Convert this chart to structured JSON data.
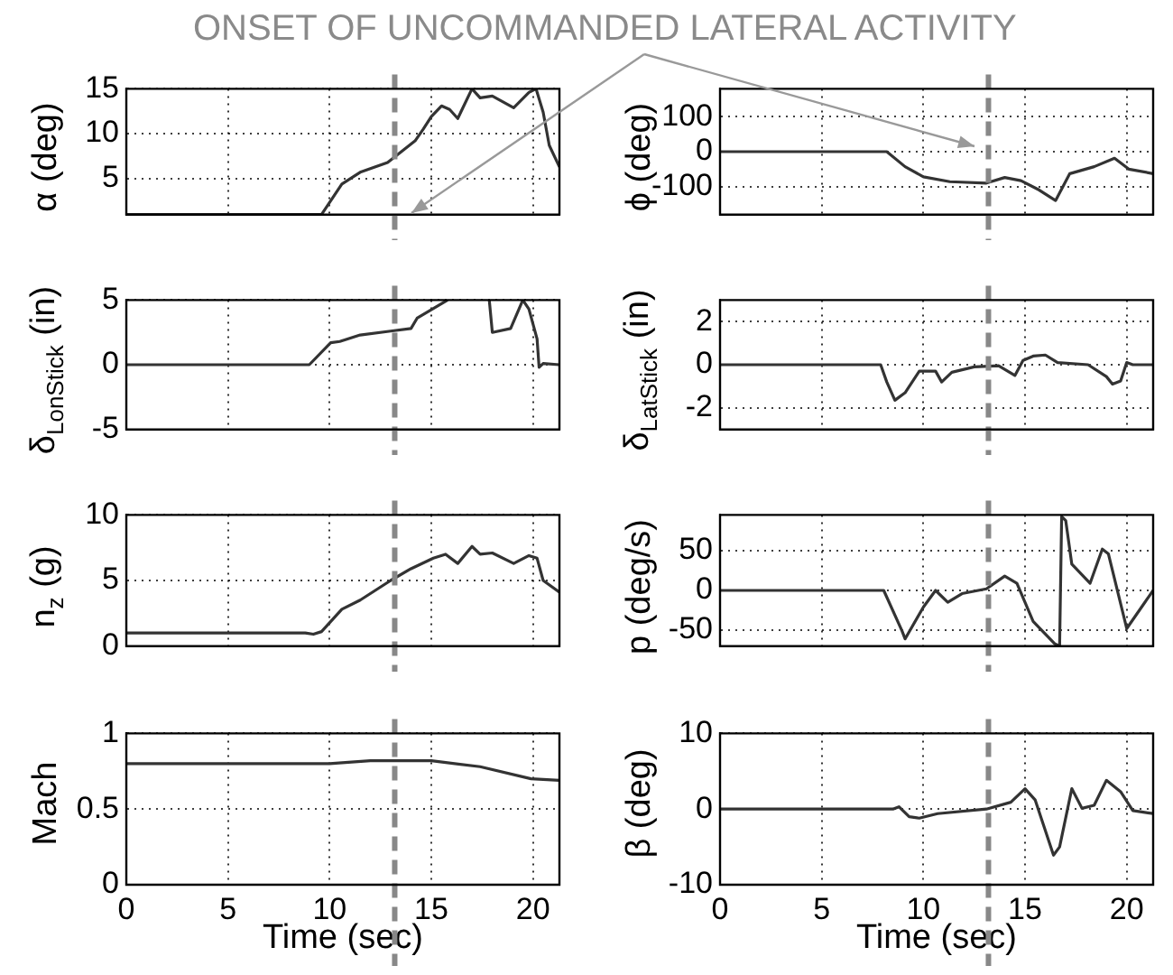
{
  "chart_data": [
    {
      "type": "line",
      "ylabel": "α (deg)",
      "annotations": [
        "ONSET OF UNCOMMANDED LATERAL ACTIVITY"
      ],
      "color": "#333333",
      "grid": true,
      "tick_labels": "y",
      "xlim": [
        0,
        21.3
      ],
      "xticks": [
        0,
        5,
        10,
        15,
        20
      ],
      "ylim": [
        1,
        15
      ],
      "yticks": [
        5,
        10,
        15
      ],
      "ref_lines": [
        {
          "axis": "x",
          "value": 13.2,
          "color": "#888888",
          "line_style": "dashed"
        }
      ],
      "x": [
        0,
        9.6,
        10.6,
        11.5,
        12.85,
        14.2,
        14.6,
        15,
        15.5,
        15.9,
        16.3,
        17,
        17.4,
        18,
        19.05,
        19.8,
        20.15,
        20.5,
        20.8,
        21.3
      ],
      "values": [
        1,
        1,
        4.4,
        5.7,
        6.8,
        9.2,
        10.5,
        11.9,
        13.1,
        12.7,
        11.7,
        15,
        14,
        14.2,
        12.9,
        14.6,
        15,
        12.4,
        8.7,
        6.3
      ]
    },
    {
      "type": "line",
      "ylabel": "ϕ (deg)",
      "color": "#333333",
      "grid": true,
      "tick_labels": "y",
      "xlim": [
        0,
        21.3
      ],
      "xticks": [
        0,
        5,
        10,
        15,
        20
      ],
      "ylim": [
        -180,
        180
      ],
      "yticks": [
        -100,
        0,
        100
      ],
      "ref_lines": [
        {
          "axis": "x",
          "value": 13.2,
          "color": "#888888",
          "line_style": "dashed"
        }
      ],
      "x": [
        0,
        8.2,
        9.1,
        10,
        11.3,
        13.1,
        14,
        14.8,
        15.7,
        16.5,
        17.2,
        18.4,
        19.4,
        20.1,
        21.3
      ],
      "values": [
        0,
        0,
        -43,
        -72,
        -86,
        -90,
        -74,
        -83,
        -110,
        -140,
        -63,
        -43,
        -19,
        -50,
        -63
      ]
    },
    {
      "type": "line",
      "ylabel": "δ$_{LonStick}$ (in)",
      "color": "#333333",
      "grid": true,
      "tick_labels": "y",
      "xlim": [
        0,
        21.3
      ],
      "xticks": [
        0,
        5,
        10,
        15,
        20
      ],
      "ylim": [
        -5,
        5
      ],
      "yticks": [
        -5,
        0,
        5
      ],
      "ref_lines": [
        {
          "axis": "x",
          "value": 13.2,
          "color": "#888888",
          "line_style": "dashed"
        }
      ],
      "x": [
        0,
        9,
        10.05,
        10.5,
        11.5,
        13,
        14,
        14.3,
        15.05,
        15.8,
        16.8,
        17.85,
        18,
        18.9,
        19.5,
        19.8,
        20.2,
        20.3,
        20.5,
        21.3
      ],
      "values": [
        0,
        0,
        1.7,
        1.8,
        2.3,
        2.6,
        2.8,
        3.6,
        4.3,
        5,
        null,
        5,
        2.5,
        2.8,
        5,
        4.3,
        2,
        -0.2,
        0.1,
        0
      ]
    },
    {
      "type": "line",
      "ylabel": "δ$_{LatStick}$ (in)",
      "color": "#333333",
      "grid": true,
      "tick_labels": "y",
      "xlim": [
        0,
        21.3
      ],
      "xticks": [
        0,
        5,
        10,
        15,
        20
      ],
      "ylim": [
        -3,
        3
      ],
      "yticks": [
        -2,
        0,
        2
      ],
      "ref_lines": [
        {
          "axis": "x",
          "value": 13.2,
          "color": "#888888",
          "line_style": "dashed"
        }
      ],
      "x": [
        0,
        7.9,
        8.2,
        8.6,
        9.1,
        9.8,
        10.6,
        10.9,
        11.4,
        12.5,
        13.7,
        14.5,
        14.9,
        15.4,
        16,
        16.6,
        18.1,
        19,
        19.3,
        19.7,
        20,
        20.3,
        21.3
      ],
      "values": [
        0,
        0,
        -0.8,
        -1.65,
        -1.3,
        -0.3,
        -0.3,
        -0.8,
        -0.35,
        -0.1,
        -0.05,
        -0.5,
        0.2,
        0.4,
        0.45,
        0.1,
        0,
        -0.55,
        -0.9,
        -0.75,
        0.1,
        0,
        0
      ]
    },
    {
      "type": "line",
      "ylabel": "n$_{z}$ (g)",
      "color": "#333333",
      "grid": true,
      "tick_labels": "y",
      "xlim": [
        0,
        21.3
      ],
      "xticks": [
        0,
        5,
        10,
        15,
        20
      ],
      "ylim": [
        0,
        10
      ],
      "yticks": [
        0,
        5,
        10
      ],
      "ref_lines": [
        {
          "axis": "x",
          "value": 13.2,
          "color": "#888888",
          "line_style": "dashed"
        }
      ],
      "x": [
        0,
        8.8,
        9.2,
        9.6,
        10.6,
        11.5,
        13,
        14,
        15.1,
        15.7,
        16.3,
        17,
        17.4,
        18,
        19.05,
        19.8,
        20.2,
        20.5,
        21.3
      ],
      "values": [
        1,
        1,
        0.9,
        1.1,
        2.8,
        3.5,
        5,
        5.9,
        6.7,
        7,
        6.3,
        7.6,
        7,
        7.1,
        6.3,
        6.9,
        6.7,
        5,
        4.1
      ]
    },
    {
      "type": "line",
      "ylabel": "p (deg/s)",
      "color": "#333333",
      "grid": true,
      "tick_labels": "y",
      "xlim": [
        0,
        21.3
      ],
      "xticks": [
        0,
        5,
        10,
        15,
        20
      ],
      "ylim": [
        -70,
        95
      ],
      "yticks": [
        -50,
        0,
        50
      ],
      "ref_lines": [
        {
          "axis": "x",
          "value": 13.2,
          "color": "#888888",
          "line_style": "dashed"
        }
      ],
      "x": [
        0,
        8.05,
        8.95,
        9.1,
        10,
        10.6,
        11.2,
        11.9,
        13.1,
        14,
        14.6,
        15.4,
        16.45,
        16.7,
        16.8,
        17,
        17.3,
        18.2,
        18.8,
        19.1,
        20,
        21.3
      ],
      "values": [
        0,
        0,
        -51,
        -61,
        -21,
        0,
        -15,
        -4,
        2,
        18,
        9,
        -39,
        -67,
        -70,
        93,
        88,
        33,
        9,
        52,
        46,
        -48,
        0
      ]
    },
    {
      "type": "line",
      "ylabel": "Mach",
      "xlabel": "Time (sec)",
      "color": "#333333",
      "grid": true,
      "xlim": [
        0,
        21.3
      ],
      "xticks": [
        0,
        5,
        10,
        15,
        20
      ],
      "ylim": [
        0,
        1
      ],
      "yticks": [
        0,
        0.5,
        1
      ],
      "ref_lines": [
        {
          "axis": "x",
          "value": 13.2,
          "color": "#888888",
          "line_style": "dashed"
        }
      ],
      "x": [
        0,
        10,
        12,
        15,
        17.4,
        19.9,
        21.3
      ],
      "values": [
        0.8,
        0.8,
        0.82,
        0.82,
        0.78,
        0.7,
        0.69
      ]
    },
    {
      "type": "line",
      "ylabel": "β (deg)",
      "xlabel": "Time (sec)",
      "color": "#333333",
      "grid": true,
      "xlim": [
        0,
        21.3
      ],
      "xticks": [
        0,
        5,
        10,
        15,
        20
      ],
      "ylim": [
        -10,
        10
      ],
      "yticks": [
        -10,
        0,
        10
      ],
      "ref_lines": [
        {
          "axis": "x",
          "value": 13.2,
          "color": "#888888",
          "line_style": "dashed"
        }
      ],
      "x": [
        0,
        8.5,
        8.8,
        9.3,
        9.8,
        10.7,
        13.1,
        14.3,
        15,
        15.5,
        16.4,
        16.7,
        17.3,
        17.8,
        18.4,
        19,
        19.7,
        20.3,
        21.3
      ],
      "values": [
        0,
        0,
        0.3,
        -1,
        -1.2,
        -0.6,
        0,
        0.9,
        2.7,
        1.2,
        -6.1,
        -5,
        2.7,
        0.1,
        0.5,
        3.8,
        2.3,
        -0.2,
        -0.6
      ]
    }
  ]
}
